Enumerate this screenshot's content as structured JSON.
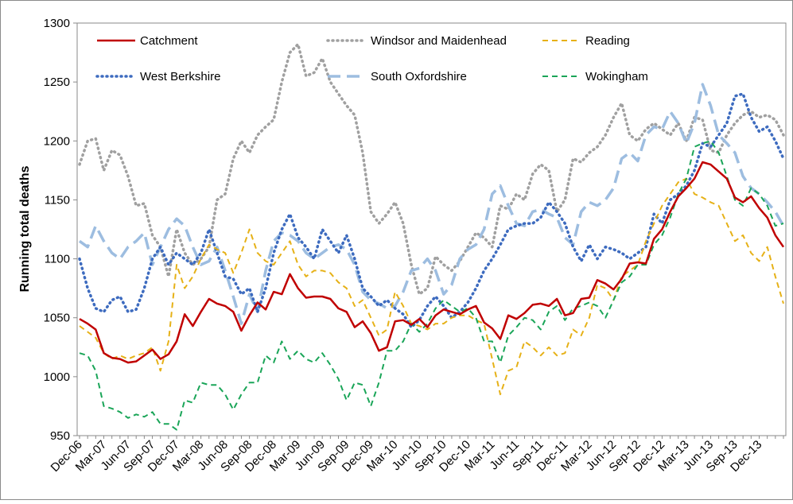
{
  "chart_data": {
    "type": "line",
    "y_label": "Running total deaths",
    "categories": [
      "Dec-06",
      null,
      null,
      "Mar-07",
      null,
      null,
      "Jun-07",
      null,
      null,
      "Sep-07",
      null,
      null,
      "Dec-07",
      null,
      null,
      "Mar-08",
      null,
      null,
      "Jun-08",
      null,
      null,
      "Sep-08",
      null,
      null,
      "Dec-08",
      null,
      null,
      "Mar-09",
      null,
      null,
      "Jun-09",
      null,
      null,
      "Sep-09",
      null,
      null,
      "Dec-09",
      null,
      null,
      "Mar-10",
      null,
      null,
      "Jun-10",
      null,
      null,
      "Sep-10",
      null,
      null,
      "Dec-10",
      null,
      null,
      "Mar-11",
      null,
      null,
      "Jun-11",
      null,
      null,
      "Sep-11",
      null,
      null,
      "Dec-11",
      null,
      null,
      "Mar-12",
      null,
      null,
      "Jun-12",
      null,
      null,
      "Sep-12",
      null,
      null,
      "Dec-12",
      null,
      null,
      "Mar-13",
      null,
      null,
      "Jun-13",
      null,
      null,
      "Sep-13",
      null,
      null,
      "Dec-13",
      null,
      null,
      null
    ],
    "ylim": [
      950,
      1300
    ],
    "yticks": [
      950,
      1000,
      1050,
      1100,
      1150,
      1200,
      1250,
      1300
    ],
    "grid": false,
    "legend": "top",
    "series": [
      {
        "name": "Catchment",
        "color": "#c00000",
        "line_style": "solid",
        "values": [
          1049,
          1045,
          1040,
          1020,
          1016,
          1015,
          1012,
          1013,
          1018,
          1023,
          1015,
          1019,
          1030,
          1053,
          1043,
          1055,
          1066,
          1062,
          1060,
          1055,
          1039,
          1052,
          1063,
          1057,
          1072,
          1070,
          1087,
          1075,
          1067,
          1068,
          1068,
          1066,
          1058,
          1055,
          1042,
          1047,
          1037,
          1022,
          1025,
          1047,
          1048,
          1044,
          1049,
          1042,
          1052,
          1057,
          1055,
          1053,
          1057,
          1060,
          1046,
          1041,
          1032,
          1052,
          1049,
          1054,
          1061,
          1062,
          1060,
          1066,
          1052,
          1054,
          1066,
          1067,
          1082,
          1079,
          1074,
          1083,
          1096,
          1097,
          1096,
          1117,
          1125,
          1140,
          1153,
          1160,
          1168,
          1182,
          1180,
          1174,
          1168,
          1152,
          1148,
          1153,
          1143,
          1135,
          1120,
          1110
        ]
      },
      {
        "name": "Windsor and Maidenhead",
        "color": "#a0a0a0",
        "line_style": "dotted",
        "values": [
          1180,
          1200,
          1202,
          1175,
          1192,
          1188,
          1170,
          1145,
          1147,
          1120,
          1110,
          1085,
          1125,
          1105,
          1095,
          1100,
          1110,
          1150,
          1155,
          1185,
          1200,
          1190,
          1205,
          1212,
          1218,
          1250,
          1275,
          1282,
          1255,
          1258,
          1270,
          1250,
          1240,
          1230,
          1222,
          1190,
          1140,
          1130,
          1138,
          1148,
          1130,
          1095,
          1070,
          1075,
          1102,
          1095,
          1090,
          1098,
          1110,
          1122,
          1118,
          1110,
          1145,
          1142,
          1155,
          1150,
          1172,
          1180,
          1175,
          1140,
          1150,
          1185,
          1182,
          1190,
          1195,
          1205,
          1220,
          1232,
          1205,
          1200,
          1210,
          1215,
          1210,
          1205,
          1215,
          1200,
          1220,
          1218,
          1192,
          1190,
          1205,
          1215,
          1222,
          1225,
          1220,
          1222,
          1218,
          1205
        ]
      },
      {
        "name": "Reading",
        "color": "#e6b117",
        "line_style": "dashed",
        "values": [
          1043,
          1038,
          1033,
          1020,
          1015,
          1018,
          1015,
          1018,
          1020,
          1025,
          1005,
          1030,
          1095,
          1075,
          1085,
          1100,
          1112,
          1108,
          1105,
          1088,
          1105,
          1125,
          1105,
          1098,
          1095,
          1105,
          1115,
          1095,
          1085,
          1090,
          1090,
          1088,
          1080,
          1075,
          1060,
          1065,
          1050,
          1035,
          1040,
          1072,
          1060,
          1045,
          1043,
          1040,
          1045,
          1045,
          1050,
          1052,
          1052,
          1048,
          1045,
          1015,
          985,
          1005,
          1008,
          1030,
          1025,
          1018,
          1025,
          1018,
          1020,
          1040,
          1035,
          1050,
          1078,
          1075,
          1065,
          1085,
          1090,
          1095,
          1115,
          1130,
          1145,
          1155,
          1165,
          1168,
          1155,
          1152,
          1148,
          1145,
          1130,
          1115,
          1120,
          1105,
          1098,
          1110,
          1085,
          1062
        ]
      },
      {
        "name": "West Berkshire",
        "color": "#3d6bbf",
        "line_style": "dotted",
        "values": [
          1100,
          1075,
          1058,
          1055,
          1065,
          1068,
          1055,
          1057,
          1075,
          1100,
          1110,
          1095,
          1105,
          1100,
          1095,
          1105,
          1125,
          1105,
          1085,
          1083,
          1070,
          1075,
          1055,
          1075,
          1105,
          1125,
          1138,
          1118,
          1110,
          1100,
          1125,
          1115,
          1105,
          1120,
          1100,
          1075,
          1068,
          1060,
          1065,
          1058,
          1053,
          1042,
          1048,
          1060,
          1068,
          1060,
          1050,
          1055,
          1063,
          1075,
          1090,
          1100,
          1112,
          1125,
          1128,
          1130,
          1130,
          1135,
          1148,
          1140,
          1130,
          1110,
          1098,
          1112,
          1100,
          1110,
          1108,
          1105,
          1100,
          1105,
          1110,
          1138,
          1130,
          1150,
          1155,
          1162,
          1175,
          1198,
          1195,
          1205,
          1215,
          1238,
          1240,
          1220,
          1208,
          1212,
          1200,
          1185
        ]
      },
      {
        "name": "South Oxfordshire",
        "color": "#9dbde0",
        "line_style": "longdash",
        "values": [
          1115,
          1110,
          1128,
          1115,
          1105,
          1100,
          1110,
          1115,
          1122,
          1095,
          1110,
          1125,
          1134,
          1128,
          1110,
          1095,
          1098,
          1110,
          1090,
          1068,
          1045,
          1070,
          1055,
          1090,
          1115,
          1122,
          1120,
          1115,
          1105,
          1100,
          1105,
          1110,
          1112,
          1108,
          1095,
          1072,
          1065,
          1062,
          1058,
          1060,
          1072,
          1090,
          1092,
          1100,
          1090,
          1070,
          1078,
          1100,
          1108,
          1112,
          1125,
          1155,
          1162,
          1145,
          1130,
          1128,
          1140,
          1142,
          1138,
          1135,
          1118,
          1112,
          1140,
          1148,
          1145,
          1150,
          1160,
          1185,
          1190,
          1183,
          1205,
          1212,
          1210,
          1225,
          1215,
          1198,
          1215,
          1248,
          1230,
          1205,
          1198,
          1190,
          1170,
          1160,
          1155,
          1148,
          1140,
          1128
        ]
      },
      {
        "name": "Wokingham",
        "color": "#1aa558",
        "line_style": "dashed",
        "values": [
          1020,
          1018,
          1005,
          975,
          973,
          970,
          965,
          968,
          966,
          970,
          960,
          960,
          955,
          980,
          978,
          995,
          993,
          993,
          985,
          972,
          985,
          995,
          995,
          1018,
          1012,
          1030,
          1015,
          1022,
          1015,
          1012,
          1020,
          1010,
          998,
          980,
          995,
          993,
          975,
          995,
          1022,
          1022,
          1030,
          1045,
          1038,
          1045,
          1058,
          1065,
          1060,
          1055,
          1058,
          1050,
          1030,
          1030,
          1012,
          1035,
          1042,
          1050,
          1048,
          1040,
          1055,
          1060,
          1048,
          1058,
          1060,
          1063,
          1060,
          1050,
          1065,
          1080,
          1085,
          1095,
          1095,
          1112,
          1120,
          1135,
          1155,
          1168,
          1195,
          1198,
          1200,
          1190,
          1170,
          1150,
          1145,
          1160,
          1155,
          1145,
          1128,
          1130
        ]
      }
    ]
  }
}
